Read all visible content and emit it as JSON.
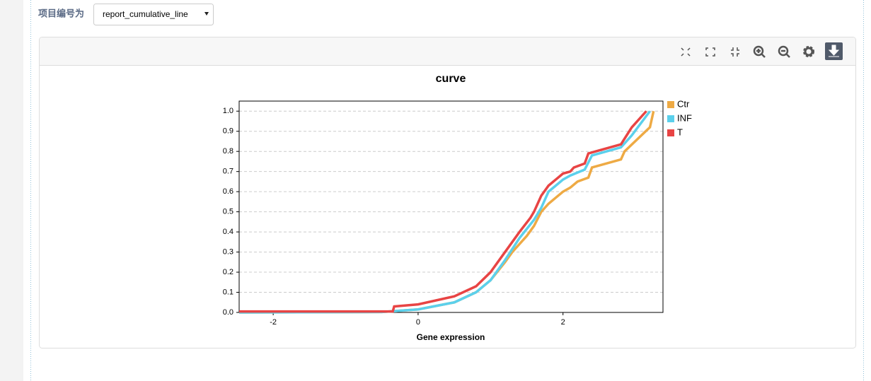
{
  "header": {
    "label": "项目编号为",
    "select": "report_cumulative_line"
  },
  "chart_data": {
    "type": "line",
    "title": "curve",
    "x_label": "Gene expression",
    "xlim": [
      -2.47,
      3.38
    ],
    "xticks": [
      -2,
      0,
      2
    ],
    "ylim": [
      0,
      1.05
    ],
    "yticks": [
      {
        "value": 0,
        "label": "0.0"
      },
      0.1,
      0.2,
      0.3,
      0.4,
      0.5,
      0.6,
      0.7,
      0.8,
      0.9,
      {
        "value": 1,
        "label": "1.0"
      }
    ],
    "grid": true,
    "legend": "right",
    "series": [
      {
        "name": "Ctr",
        "color": "#eeaa44",
        "x": [
          -2.47,
          -0.5,
          0,
          0.5,
          0.8,
          1.0,
          1.2,
          1.3,
          1.5,
          1.6,
          1.7,
          1.8,
          1.9,
          2.0,
          2.1,
          2.2,
          2.35,
          2.4,
          2.8,
          2.85,
          3.2,
          3.25
        ],
        "values": [
          0,
          0.002,
          0.015,
          0.05,
          0.1,
          0.16,
          0.25,
          0.3,
          0.38,
          0.43,
          0.5,
          0.54,
          0.57,
          0.6,
          0.62,
          0.65,
          0.67,
          0.72,
          0.76,
          0.8,
          0.92,
          1.0
        ]
      },
      {
        "name": "INF",
        "color": "#5bd0ec",
        "x": [
          -2.47,
          -0.5,
          0,
          0.5,
          0.8,
          1.0,
          1.2,
          1.4,
          1.6,
          1.7,
          1.8,
          1.9,
          2.0,
          2.1,
          2.3,
          2.4,
          2.8,
          2.95,
          3.2
        ],
        "values": [
          0,
          0.002,
          0.015,
          0.05,
          0.1,
          0.16,
          0.26,
          0.37,
          0.46,
          0.52,
          0.6,
          0.63,
          0.66,
          0.68,
          0.71,
          0.78,
          0.82,
          0.88,
          1.0
        ]
      },
      {
        "name": "T",
        "color": "#e84444",
        "x": [
          -2.47,
          -0.35,
          -0.33,
          0,
          0.5,
          0.8,
          1.0,
          1.2,
          1.4,
          1.55,
          1.6,
          1.7,
          1.8,
          1.9,
          2.0,
          2.1,
          2.15,
          2.3,
          2.35,
          2.45,
          2.8,
          2.95,
          3.15
        ],
        "values": [
          0.005,
          0.005,
          0.03,
          0.04,
          0.08,
          0.13,
          0.2,
          0.3,
          0.4,
          0.47,
          0.5,
          0.58,
          0.63,
          0.66,
          0.69,
          0.7,
          0.72,
          0.74,
          0.79,
          0.8,
          0.835,
          0.92,
          1.0
        ]
      }
    ]
  }
}
